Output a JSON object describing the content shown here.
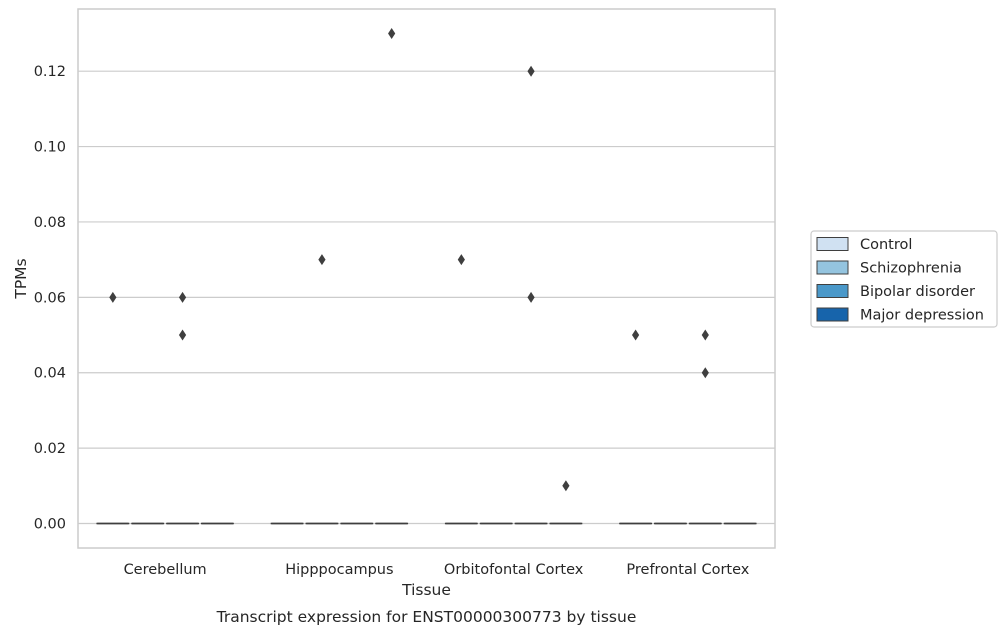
{
  "chart_data": {
    "type": "box",
    "title": "Transcript expression for ENST00000300773 by tissue",
    "xlabel": "Tissue",
    "ylabel": "TPMs",
    "categories": [
      "Cerebellum",
      "Hipppocampus",
      "Orbitofontal Cortex",
      "Prefrontal Cortex"
    ],
    "ylim": [
      -0.0065,
      0.1365
    ],
    "yticks": [
      0.0,
      0.02,
      0.04,
      0.06,
      0.08,
      0.1,
      0.12
    ],
    "ytick_labels": [
      "0.00",
      "0.02",
      "0.04",
      "0.06",
      "0.08",
      "0.10",
      "0.12"
    ],
    "grid": true,
    "legend_position": "right",
    "series": [
      {
        "name": "Control",
        "color": "#d0e1f2",
        "boxes": [
          {
            "q1": 0,
            "median": 0,
            "q3": 0,
            "whisker_low": 0,
            "whisker_high": 0,
            "outliers": [
              0.06
            ]
          },
          {
            "q1": 0,
            "median": 0,
            "q3": 0,
            "whisker_low": 0,
            "whisker_high": 0,
            "outliers": []
          },
          {
            "q1": 0,
            "median": 0,
            "q3": 0,
            "whisker_low": 0,
            "whisker_high": 0,
            "outliers": [
              0.07
            ]
          },
          {
            "q1": 0,
            "median": 0,
            "q3": 0,
            "whisker_low": 0,
            "whisker_high": 0,
            "outliers": [
              0.05
            ]
          }
        ]
      },
      {
        "name": "Schizophrenia",
        "color": "#94c4df",
        "boxes": [
          {
            "q1": 0,
            "median": 0,
            "q3": 0,
            "whisker_low": 0,
            "whisker_high": 0,
            "outliers": []
          },
          {
            "q1": 0,
            "median": 0,
            "q3": 0,
            "whisker_low": 0,
            "whisker_high": 0,
            "outliers": [
              0.07
            ]
          },
          {
            "q1": 0,
            "median": 0,
            "q3": 0,
            "whisker_low": 0,
            "whisker_high": 0,
            "outliers": []
          },
          {
            "q1": 0,
            "median": 0,
            "q3": 0,
            "whisker_low": 0,
            "whisker_high": 0,
            "outliers": []
          }
        ]
      },
      {
        "name": "Bipolar disorder",
        "color": "#4a98c9",
        "boxes": [
          {
            "q1": 0,
            "median": 0,
            "q3": 0,
            "whisker_low": 0,
            "whisker_high": 0,
            "outliers": [
              0.06,
              0.05
            ]
          },
          {
            "q1": 0,
            "median": 0,
            "q3": 0,
            "whisker_low": 0,
            "whisker_high": 0,
            "outliers": []
          },
          {
            "q1": 0,
            "median": 0,
            "q3": 0,
            "whisker_low": 0,
            "whisker_high": 0,
            "outliers": [
              0.12,
              0.06
            ]
          },
          {
            "q1": 0,
            "median": 0,
            "q3": 0,
            "whisker_low": 0,
            "whisker_high": 0,
            "outliers": [
              0.05,
              0.04
            ]
          }
        ]
      },
      {
        "name": "Major depression",
        "color": "#1764ab",
        "boxes": [
          {
            "q1": 0,
            "median": 0,
            "q3": 0,
            "whisker_low": 0,
            "whisker_high": 0,
            "outliers": []
          },
          {
            "q1": 0,
            "median": 0,
            "q3": 0,
            "whisker_low": 0,
            "whisker_high": 0,
            "outliers": [
              0.13
            ]
          },
          {
            "q1": 0,
            "median": 0,
            "q3": 0,
            "whisker_low": 0,
            "whisker_high": 0,
            "outliers": [
              0.01
            ]
          },
          {
            "q1": 0,
            "median": 0,
            "q3": 0,
            "whisker_low": 0,
            "whisker_high": 0,
            "outliers": []
          }
        ]
      }
    ],
    "style": {
      "grid_color": "#cccccc",
      "spine_color": "#cccccc",
      "line_color": "#3f3f3f",
      "text_color": "#262626",
      "legend_border": "#cccccc"
    }
  }
}
